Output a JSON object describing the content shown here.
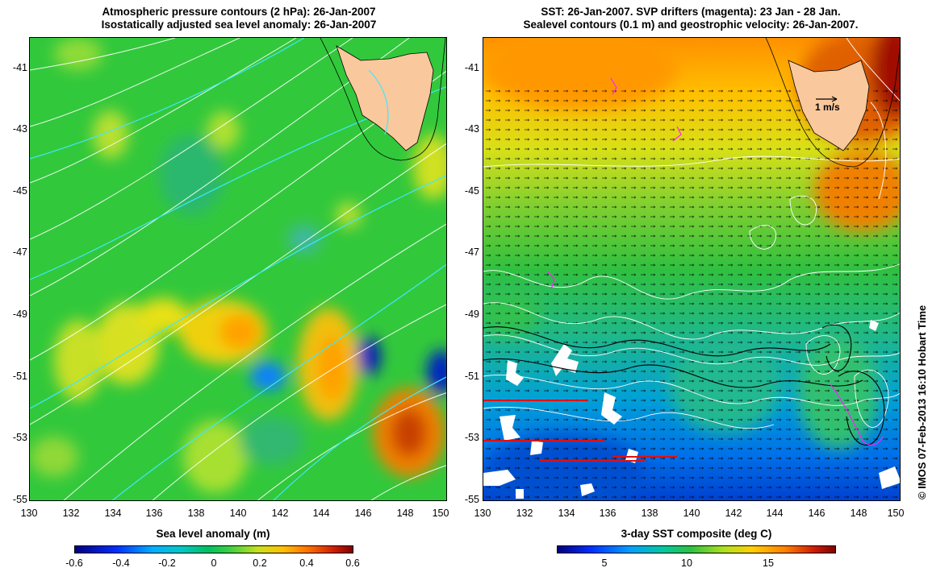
{
  "left_panel": {
    "title_line1": "Atmospheric pressure contours (2 hPa): 26-Jan-2007",
    "title_line2": "Isostatically adjusted sea level anomaly: 26-Jan-2007",
    "y_ticks": [
      "-41",
      "-43",
      "-45",
      "-47",
      "-49",
      "-51",
      "-53",
      "-55"
    ],
    "x_ticks": [
      "130",
      "132",
      "134",
      "136",
      "138",
      "140",
      "142",
      "144",
      "146",
      "148",
      "150"
    ],
    "colorbar": {
      "title": "Sea level anomaly (m)",
      "labels": [
        "-0.6",
        "-0.4",
        "-0.2",
        "0",
        "0.2",
        "0.4",
        "0.6"
      ],
      "range": [
        -0.6,
        0.6
      ]
    }
  },
  "right_panel": {
    "title_line1": "SST: 26-Jan-2007. SVP drifters (magenta): 23 Jan - 28 Jan.",
    "title_line2": "Sealevel contours (0.1 m) and geostrophic velocity: 26-Jan-2007.",
    "y_ticks": [
      "-41",
      "-43",
      "-45",
      "-47",
      "-49",
      "-51",
      "-53",
      "-55"
    ],
    "x_ticks": [
      "130",
      "132",
      "134",
      "136",
      "138",
      "140",
      "142",
      "144",
      "146",
      "148",
      "150"
    ],
    "velocity_label": "1 m/s",
    "colorbar": {
      "title": "3-day SST composite (deg C)",
      "labels": [
        "5",
        "10",
        "15"
      ],
      "range": [
        2,
        19
      ]
    }
  },
  "credit": "© IMOS 07-Feb-2013 16:10 Hobart Time",
  "colors": {
    "land": "#f9c89c",
    "anomaly_ramp": [
      "#00007f",
      "#0050ff",
      "#00c8ff",
      "#00c060",
      "#40d040",
      "#d8e820",
      "#ffa000",
      "#e04000",
      "#800000"
    ],
    "sst_ramp": [
      "#00007f",
      "#0050ff",
      "#00a0ff",
      "#00c8a0",
      "#40c840",
      "#c8e020",
      "#ffb000",
      "#ff6000",
      "#800000"
    ]
  }
}
